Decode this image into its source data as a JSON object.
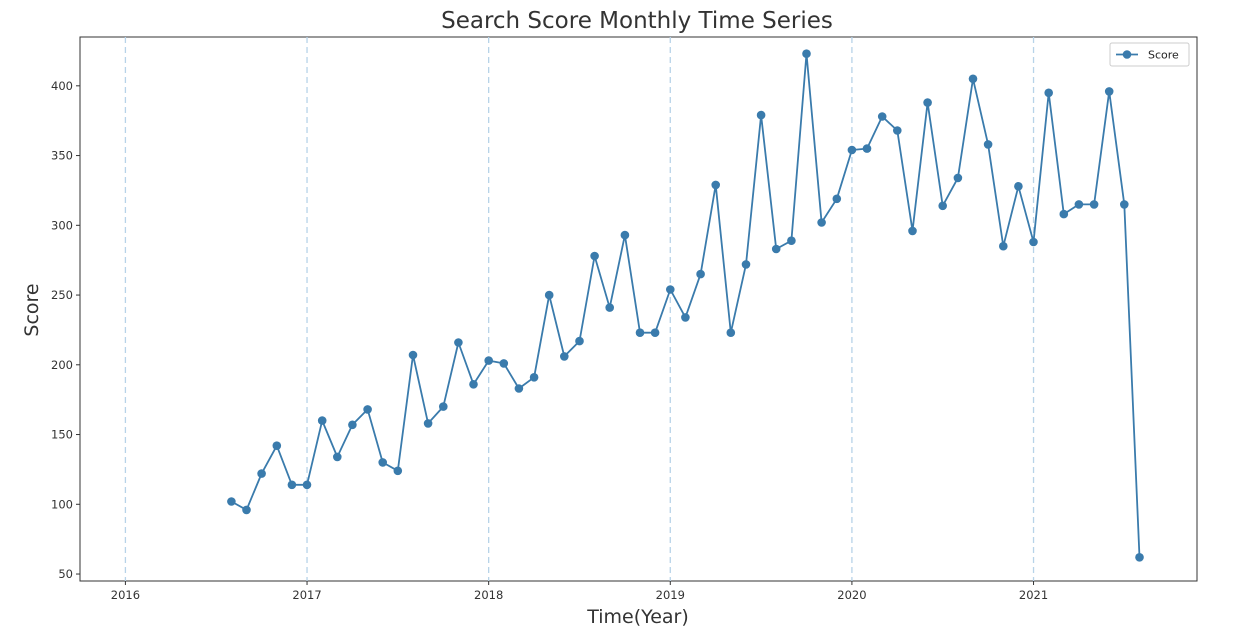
{
  "chart_data": {
    "type": "line",
    "title": "Search Score Monthly Time Series",
    "xlabel": "Time(Year)",
    "ylabel": "Score",
    "xlim": [
      2015.75,
      2021.9
    ],
    "ylim": [
      45,
      435
    ],
    "xticks": [
      2016,
      2017,
      2018,
      2019,
      2020,
      2021
    ],
    "xtick_labels": [
      "2016",
      "2017",
      "2018",
      "2019",
      "2020",
      "2021"
    ],
    "yticks": [
      50,
      100,
      150,
      200,
      250,
      300,
      350,
      400
    ],
    "ytick_labels": [
      "50",
      "100",
      "150",
      "200",
      "250",
      "300",
      "350",
      "400"
    ],
    "grid": "vertical dashed lines at year ticks",
    "legend": {
      "position": "top-right",
      "entries": [
        "Score"
      ]
    },
    "colors": {
      "line": "#3a7bac",
      "grid": "#b7d3e8"
    },
    "series": [
      {
        "name": "Score",
        "x": [
          "2016-08",
          "2016-09",
          "2016-10",
          "2016-11",
          "2016-12",
          "2017-01",
          "2017-02",
          "2017-03",
          "2017-04",
          "2017-05",
          "2017-06",
          "2017-07",
          "2017-08",
          "2017-09",
          "2017-10",
          "2017-11",
          "2017-12",
          "2018-01",
          "2018-02",
          "2018-03",
          "2018-04",
          "2018-05",
          "2018-06",
          "2018-07",
          "2018-08",
          "2018-09",
          "2018-10",
          "2018-11",
          "2018-12",
          "2019-01",
          "2019-02",
          "2019-03",
          "2019-04",
          "2019-05",
          "2019-06",
          "2019-07",
          "2019-08",
          "2019-09",
          "2019-10",
          "2019-11",
          "2019-12",
          "2020-01",
          "2020-02",
          "2020-03",
          "2020-04",
          "2020-05",
          "2020-06",
          "2020-07",
          "2020-08",
          "2020-09",
          "2020-10",
          "2020-11",
          "2020-12",
          "2021-01",
          "2021-02",
          "2021-03",
          "2021-04",
          "2021-05",
          "2021-06",
          "2021-07",
          "2021-08"
        ],
        "values": [
          102,
          96,
          122,
          142,
          114,
          114,
          160,
          134,
          157,
          168,
          130,
          124,
          207,
          158,
          170,
          216,
          186,
          203,
          201,
          183,
          191,
          250,
          206,
          217,
          278,
          241,
          293,
          223,
          223,
          254,
          234,
          265,
          329,
          223,
          272,
          379,
          283,
          289,
          423,
          302,
          319,
          354,
          355,
          378,
          368,
          296,
          388,
          314,
          334,
          405,
          358,
          285,
          328,
          288,
          395,
          308,
          315,
          315,
          396,
          315,
          62
        ]
      }
    ]
  }
}
